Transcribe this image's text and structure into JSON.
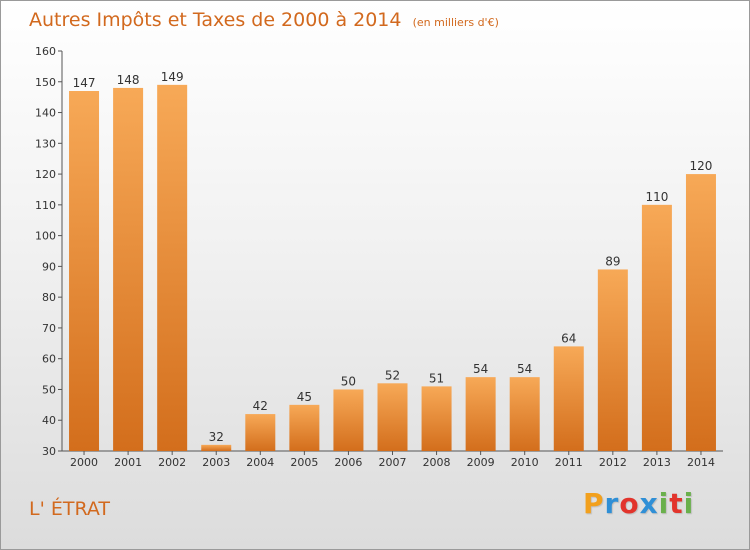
{
  "header": {
    "title": "Autres Impôts et Taxes de 2000 à 2014",
    "unit": "(en milliers d'€)"
  },
  "commune": "L' ÉTRAT",
  "logo": {
    "letters": [
      "P",
      "r",
      "o",
      "x",
      "i",
      "t",
      "i"
    ],
    "colors": [
      "#f2a01d",
      "#2f8fd6",
      "#e2342c",
      "#2f8fd6",
      "#6ab04c",
      "#e2342c",
      "#6ab04c"
    ]
  },
  "colors": {
    "bar_top": "#f7a957",
    "bar_bottom": "#d36e1c",
    "accent": "#d2691e"
  },
  "chart_data": {
    "type": "bar",
    "title": "Autres Impôts et Taxes de 2000 à 2014",
    "subtitle": "(en milliers d'€)",
    "categories": [
      "2000",
      "2001",
      "2002",
      "2003",
      "2004",
      "2005",
      "2006",
      "2007",
      "2008",
      "2009",
      "2010",
      "2011",
      "2012",
      "2013",
      "2014"
    ],
    "values": [
      147,
      148,
      149,
      32,
      42,
      45,
      50,
      52,
      51,
      54,
      54,
      64,
      89,
      110,
      120
    ],
    "ylim": [
      30,
      160
    ],
    "yticks": [
      30,
      40,
      50,
      60,
      70,
      80,
      90,
      100,
      110,
      120,
      130,
      140,
      150,
      160
    ],
    "grid": false,
    "xlabel": "",
    "ylabel": ""
  }
}
